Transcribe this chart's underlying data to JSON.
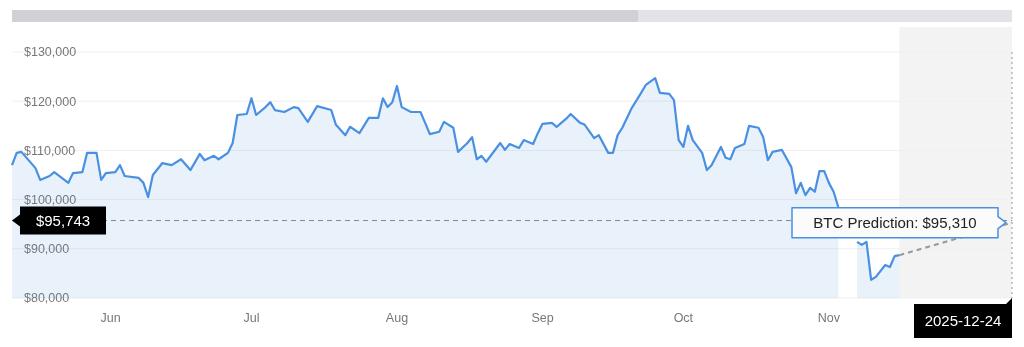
{
  "chart_data": {
    "type": "area",
    "x": [
      "2025-05-25",
      "2025-05-26",
      "2025-05-27",
      "2025-05-30",
      "2025-05-31",
      "2025-06-02",
      "2025-06-03",
      "2025-06-06",
      "2025-06-07",
      "2025-06-09",
      "2025-06-10",
      "2025-06-12",
      "2025-06-13",
      "2025-06-14",
      "2025-06-16",
      "2025-06-17",
      "2025-06-18",
      "2025-06-21",
      "2025-06-22",
      "2025-06-23",
      "2025-06-24",
      "2025-06-26",
      "2025-06-28",
      "2025-06-30",
      "2025-07-02",
      "2025-07-04",
      "2025-07-05",
      "2025-07-07",
      "2025-07-08",
      "2025-07-10",
      "2025-07-11",
      "2025-07-12",
      "2025-07-14",
      "2025-07-15",
      "2025-07-16",
      "2025-07-18",
      "2025-07-19",
      "2025-07-20",
      "2025-07-22",
      "2025-07-24",
      "2025-07-25",
      "2025-07-27",
      "2025-07-29",
      "2025-08-01",
      "2025-08-02",
      "2025-08-04",
      "2025-08-05",
      "2025-08-07",
      "2025-08-09",
      "2025-08-11",
      "2025-08-12",
      "2025-08-13",
      "2025-08-14",
      "2025-08-15",
      "2025-08-16",
      "2025-08-18",
      "2025-08-20",
      "2025-08-21",
      "2025-08-22",
      "2025-08-24",
      "2025-08-25",
      "2025-08-27",
      "2025-08-28",
      "2025-08-30",
      "2025-08-31",
      "2025-09-01",
      "2025-09-02",
      "2025-09-03",
      "2025-09-06",
      "2025-09-07",
      "2025-09-08",
      "2025-09-10",
      "2025-09-11",
      "2025-09-13",
      "2025-09-14",
      "2025-09-15",
      "2025-09-17",
      "2025-09-18",
      "2025-09-20",
      "2025-09-21",
      "2025-09-23",
      "2025-09-24",
      "2025-09-26",
      "2025-09-27",
      "2025-09-29",
      "2025-09-30",
      "2025-10-01",
      "2025-10-02",
      "2025-10-04",
      "2025-10-06",
      "2025-10-07",
      "2025-10-09",
      "2025-10-10",
      "2025-10-12",
      "2025-10-13",
      "2025-10-14",
      "2025-10-15",
      "2025-10-16",
      "2025-10-17",
      "2025-10-19",
      "2025-10-20",
      "2025-10-21",
      "2025-10-23",
      "2025-10-24",
      "2025-10-25",
      "2025-10-26",
      "2025-10-28",
      "2025-10-29",
      "2025-10-31",
      "2025-11-01",
      "2025-11-02",
      "2025-11-03",
      "2025-11-05",
      "2025-11-07",
      "2025-11-08",
      "2025-11-09",
      "2025-11-10",
      "2025-11-11",
      "2025-11-12",
      "2025-11-13",
      "2025-11-14",
      "2025-11-15",
      "2025-11-16",
      "2025-11-17",
      "2025-11-19",
      "2025-11-21",
      "2025-11-22",
      "2025-11-23",
      "2025-11-24",
      "2025-11-25",
      "2025-11-27",
      "2025-11-28",
      "2025-11-29",
      "2025-11-30"
    ],
    "series": [
      {
        "color": "#4a90e2",
        "values": [
          107000,
          109500,
          109700,
          106400,
          104000,
          104800,
          105600,
          103400,
          105400,
          105600,
          109500,
          109500,
          104000,
          105400,
          105600,
          107000,
          104800,
          104400,
          103400,
          100500,
          105000,
          107400,
          107000,
          108200,
          106000,
          109300,
          108000,
          108900,
          108200,
          109500,
          111500,
          117200,
          117400,
          120600,
          117200,
          118800,
          119800,
          118200,
          117800,
          118800,
          118600,
          115800,
          119000,
          118200,
          115200,
          113100,
          114800,
          113500,
          116600,
          116600,
          120600,
          118800,
          119800,
          123100,
          118800,
          117800,
          117800,
          115600,
          113300,
          113800,
          115800,
          114600,
          109700,
          111500,
          112700,
          108200,
          108900,
          107700,
          111500,
          110100,
          111300,
          110500,
          112100,
          111300,
          113500,
          115400,
          115600,
          114800,
          116400,
          117400,
          115600,
          115200,
          112500,
          113100,
          109500,
          109500,
          113100,
          114600,
          118600,
          121700,
          123300,
          124700,
          121700,
          121500,
          120200,
          112100,
          110700,
          115000,
          112100,
          109500,
          106000,
          107000,
          110700,
          108500,
          108200,
          110500,
          111300,
          115000,
          114600,
          112700,
          108000,
          109700,
          110100,
          106600,
          101300,
          103400,
          100900,
          102400,
          101600,
          105800,
          105800,
          103400,
          101600,
          98500,
          null,
          91400,
          90800,
          91400,
          83700,
          84300,
          86700,
          86300,
          88500,
          88700
        ]
      },
      {
        "type": "line",
        "color": "#999999",
        "line_style": "dashed",
        "x": [
          "2025-11-30",
          "2025-12-24"
        ],
        "values": [
          88700,
          95310
        ]
      }
    ],
    "xlim": [
      "2025-05-25",
      "2025-12-24"
    ],
    "xticks": [
      {
        "value": "2025-06-15",
        "label": "Jun"
      },
      {
        "value": "2025-07-15",
        "label": "Jul"
      },
      {
        "value": "2025-08-15",
        "label": "Aug"
      },
      {
        "value": "2025-09-15",
        "label": "Sep"
      },
      {
        "value": "2025-10-15",
        "label": "Oct"
      },
      {
        "value": "2025-11-15",
        "label": "Nov"
      }
    ],
    "ylim": [
      80000,
      130000
    ],
    "yticks": [
      {
        "value": 80000,
        "label": "$80,000"
      },
      {
        "value": 90000,
        "label": "$90,000"
      },
      {
        "value": 100000,
        "label": "$100,000"
      },
      {
        "value": 110000,
        "label": "$110,000"
      },
      {
        "value": 120000,
        "label": "$120,000"
      },
      {
        "value": 130000,
        "label": "$130,000"
      }
    ],
    "grid": "y",
    "ref_lines": [
      {
        "axis": "y",
        "value": 95743,
        "label": "$95,743",
        "color": "#888888",
        "line_style": "dashed"
      },
      {
        "axis": "x",
        "value": "2025-12-24",
        "label": "2025-12-24",
        "color": "#999999",
        "line_style": "dotted"
      }
    ],
    "bands": [
      {
        "axis": "x",
        "from": "2025-11-30",
        "to": "2025-12-24",
        "color": "#f3f3f3"
      }
    ],
    "annotations": [
      {
        "text": "BTC Prediction: $95,310",
        "x": "2025-12-24",
        "y": 95310
      }
    ]
  }
}
